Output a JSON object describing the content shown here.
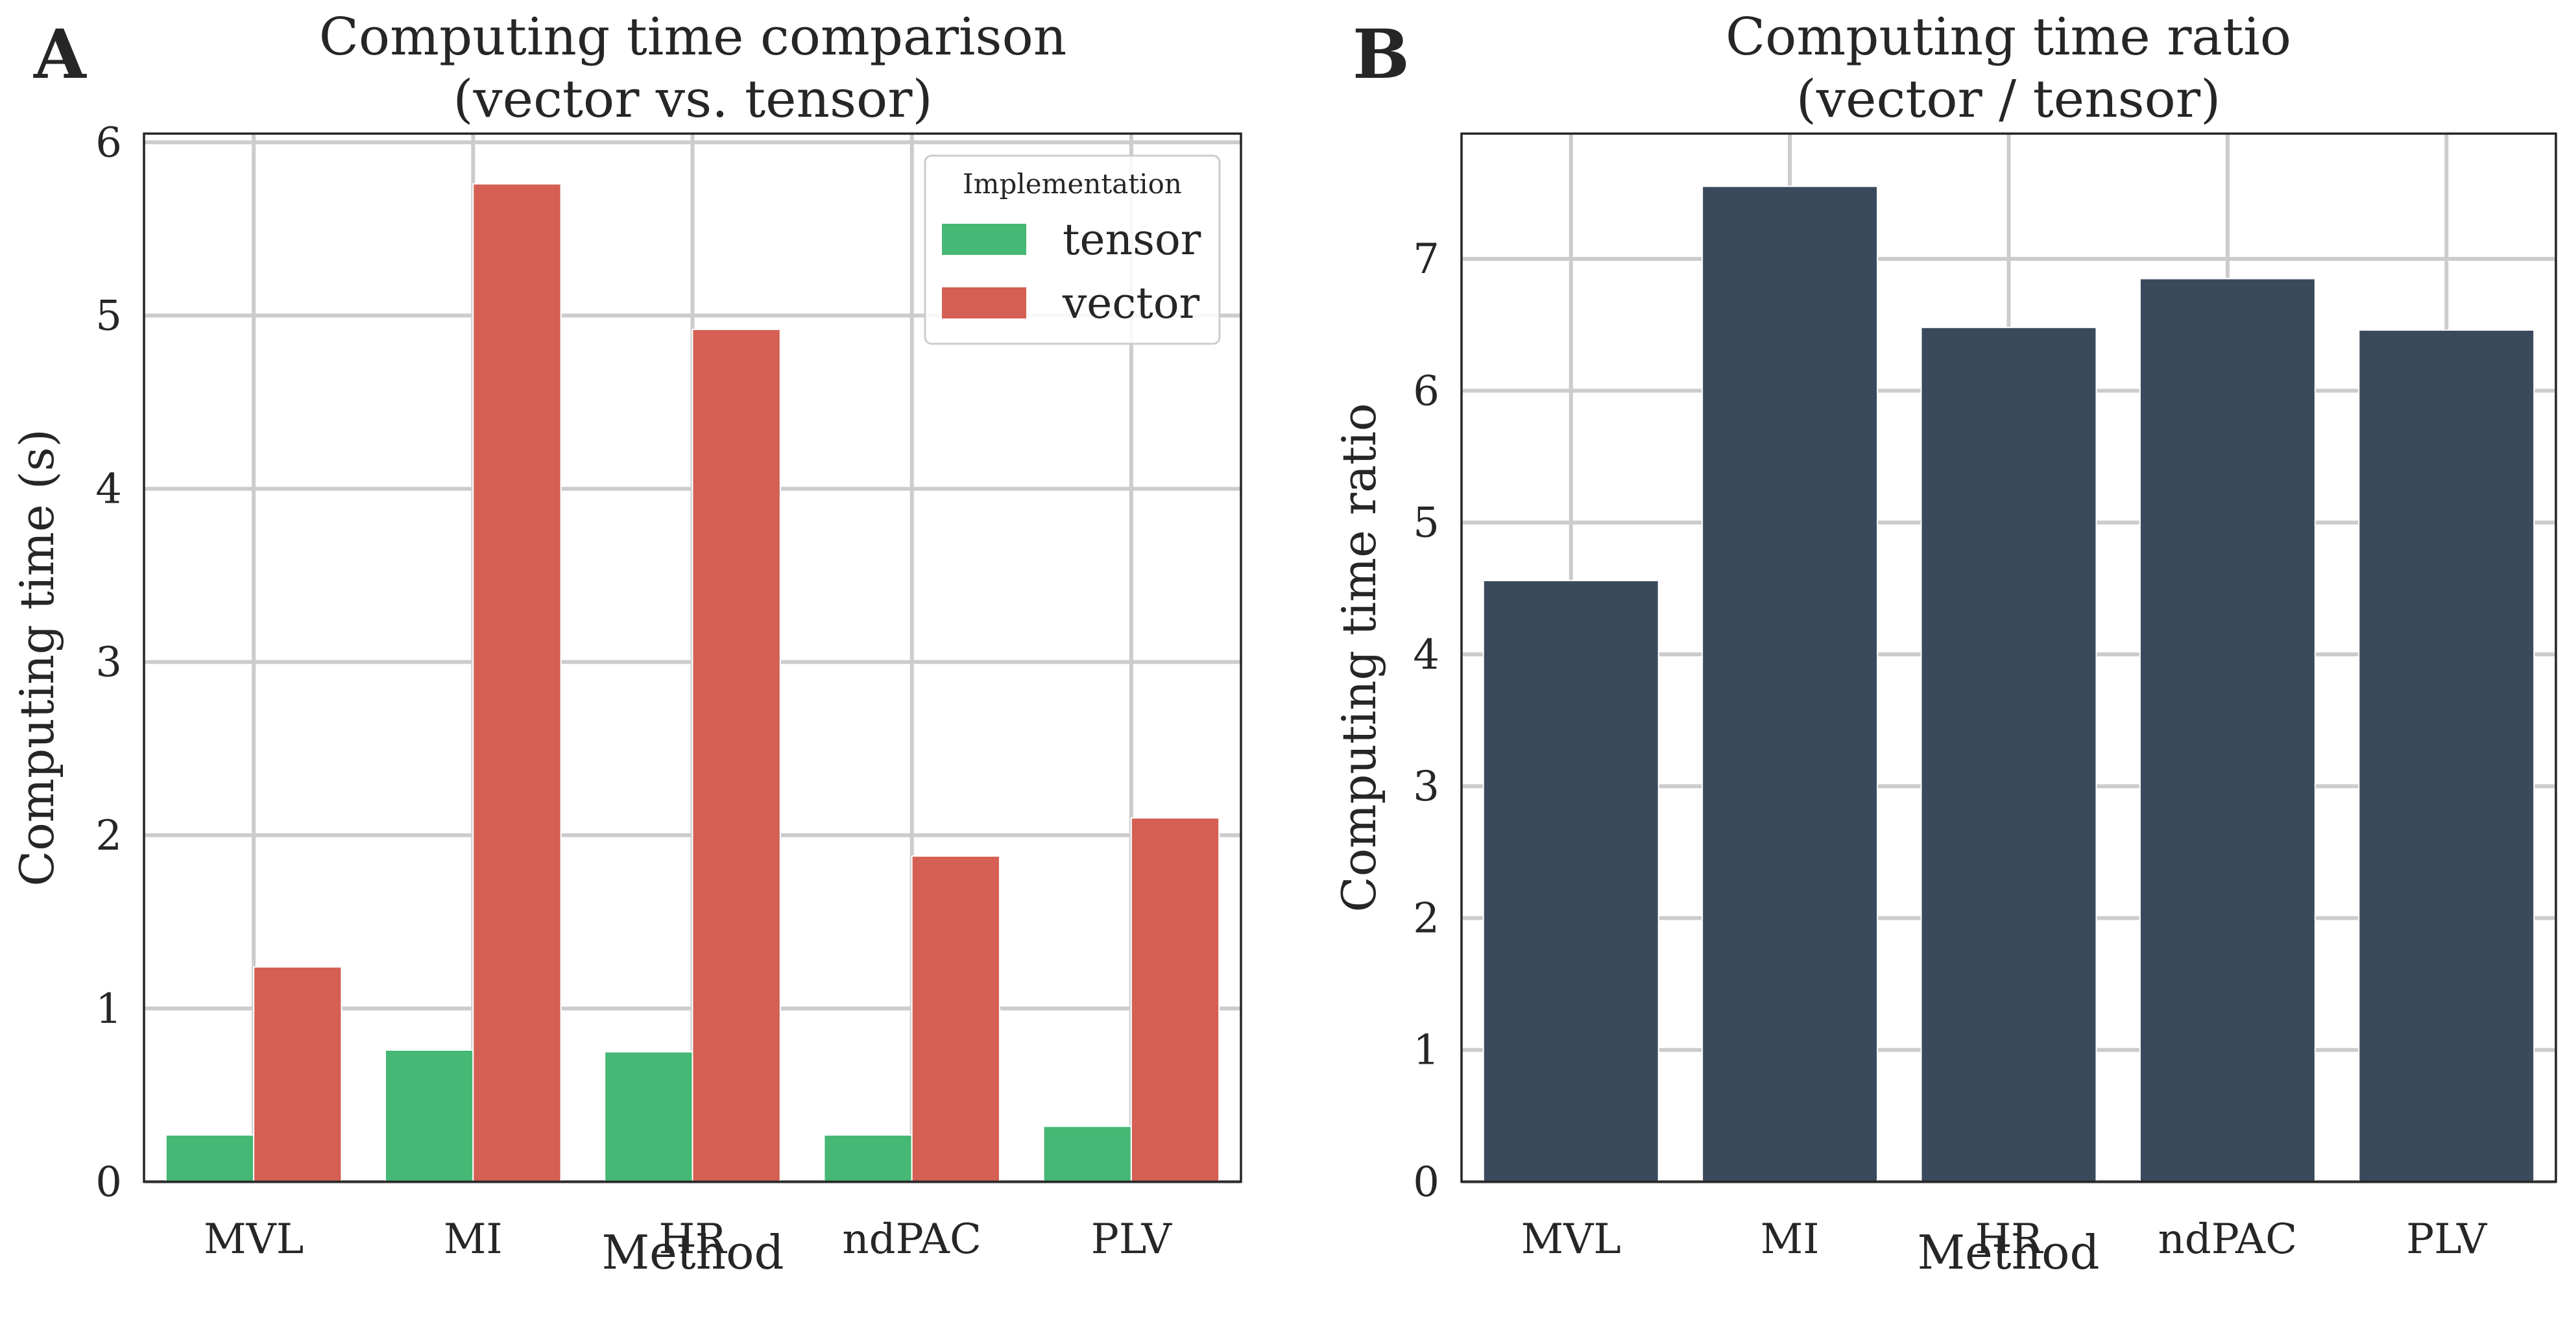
{
  "panel_labels": [
    "A",
    "B"
  ],
  "colors": {
    "tensor": "#44b874",
    "vector": "#d45f52",
    "ratio": "#3a4a5c"
  },
  "chart_data": [
    {
      "type": "bar",
      "title": [
        "Computing time comparison",
        "(vector vs. tensor)"
      ],
      "xlabel": "Method",
      "ylabel": "Computing time (s)",
      "categories": [
        "MVL",
        "MI",
        "HR",
        "ndPAC",
        "PLV"
      ],
      "ylim": [
        0,
        6.05
      ],
      "yticks": [
        0,
        1,
        2,
        3,
        4,
        5,
        6
      ],
      "grid": true,
      "legend": {
        "title": "Implementation",
        "position": "top-right"
      },
      "series": [
        {
          "name": "tensor",
          "values": [
            0.27,
            0.76,
            0.75,
            0.27,
            0.32
          ]
        },
        {
          "name": "vector",
          "values": [
            1.24,
            5.76,
            4.92,
            1.88,
            2.1
          ]
        }
      ]
    },
    {
      "type": "bar",
      "title": [
        "Computing time ratio",
        "(vector / tensor)"
      ],
      "xlabel": "Method",
      "ylabel": "Computing time ratio",
      "categories": [
        "MVL",
        "MI",
        "HR",
        "ndPAC",
        "PLV"
      ],
      "ylim": [
        0,
        7.95
      ],
      "yticks": [
        0,
        1,
        2,
        3,
        4,
        5,
        6,
        7
      ],
      "grid": true,
      "series": [
        {
          "name": "",
          "values": [
            4.56,
            7.55,
            6.48,
            6.85,
            6.46
          ]
        }
      ]
    }
  ]
}
